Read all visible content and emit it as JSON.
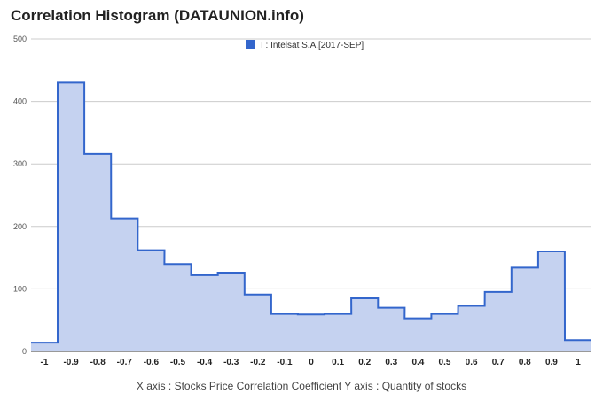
{
  "chart_data": {
    "type": "area",
    "title": "Correlation Histogram (DATAUNION.info)",
    "caption": "X axis : Stocks Price Correlation Coefficient  Y axis : Quantity of stocks",
    "legend": {
      "label": "I : Intelsat S.A.[2017-SEP]",
      "position": "top"
    },
    "series": [
      {
        "name": "I : Intelsat S.A.[2017-SEP]",
        "color": "#3366cc",
        "x": [
          -1,
          -0.9,
          -0.8,
          -0.7,
          -0.6,
          -0.5,
          -0.4,
          -0.3,
          -0.2,
          -0.1,
          0,
          0.1,
          0.2,
          0.3,
          0.4,
          0.5,
          0.6,
          0.7,
          0.8,
          0.9,
          1
        ],
        "values": [
          14,
          430,
          316,
          213,
          162,
          140,
          122,
          126,
          91,
          60,
          59,
          60,
          85,
          70,
          53,
          60,
          73,
          95,
          134,
          160,
          18
        ]
      }
    ],
    "x_ticks": [
      "-1",
      "-0.9",
      "-0.8",
      "-0.7",
      "-0.6",
      "-0.5",
      "-0.4",
      "-0.3",
      "-0.2",
      "-0.1",
      "0",
      "0.1",
      "0.2",
      "0.3",
      "0.4",
      "0.5",
      "0.6",
      "0.7",
      "0.8",
      "0.9",
      "1"
    ],
    "y_ticks": [
      "0",
      "100",
      "200",
      "300",
      "400",
      "500"
    ],
    "ylim": [
      0,
      500
    ],
    "grid": true,
    "fill_color": "#c5d2f0",
    "grid_color": "#cccccc"
  }
}
